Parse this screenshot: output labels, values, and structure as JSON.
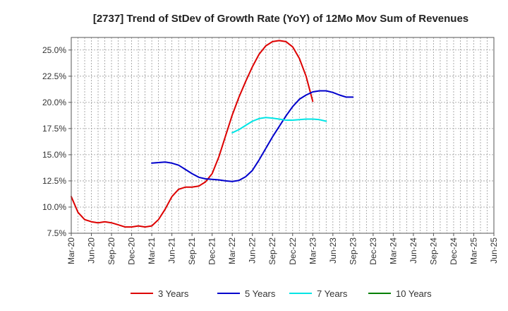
{
  "chart_data": {
    "type": "line",
    "title": "[2737]  Trend of StDev of Growth Rate (YoY) of 12Mo Mov Sum of Revenues",
    "xlabel": "",
    "ylabel": "",
    "x_ticks": [
      "Mar-20",
      "Jun-20",
      "Sep-20",
      "Dec-20",
      "Mar-21",
      "Jun-21",
      "Sep-21",
      "Dec-21",
      "Mar-22",
      "Jun-22",
      "Sep-22",
      "Dec-22",
      "Mar-23",
      "Jun-23",
      "Sep-23",
      "Dec-23",
      "Mar-24",
      "Jun-24",
      "Sep-24",
      "Dec-24",
      "Mar-25",
      "Jun-25"
    ],
    "y_ticks": [
      "7.5%",
      "10.0%",
      "12.5%",
      "15.0%",
      "17.5%",
      "20.0%",
      "22.5%",
      "25.0%"
    ],
    "y_tick_values": [
      7.5,
      10.0,
      12.5,
      15.0,
      17.5,
      20.0,
      22.5,
      25.0
    ],
    "ylim": [
      7.5,
      26.2
    ],
    "grid": true,
    "legend_position": "bottom",
    "series": [
      {
        "name": "3 Years",
        "color": "#dd0000",
        "start_index": 0,
        "values": [
          11.0,
          9.5,
          8.8,
          8.6,
          8.5,
          8.6,
          8.5,
          8.3,
          8.1,
          8.1,
          8.2,
          8.1,
          8.2,
          8.8,
          9.8,
          11.0,
          11.7,
          11.9,
          11.9,
          12.0,
          12.4,
          13.2,
          14.8,
          16.8,
          18.8,
          20.5,
          22.0,
          23.4,
          24.6,
          25.4,
          25.8,
          25.9,
          25.8,
          25.3,
          24.2,
          22.5,
          20.1
        ]
      },
      {
        "name": "5 Years",
        "color": "#0000cc",
        "start_index": 12,
        "values": [
          14.2,
          14.25,
          14.3,
          14.2,
          14.0,
          13.6,
          13.2,
          12.85,
          12.7,
          12.65,
          12.6,
          12.5,
          12.45,
          12.55,
          12.9,
          13.5,
          14.5,
          15.6,
          16.7,
          17.7,
          18.7,
          19.6,
          20.3,
          20.7,
          21.0,
          21.1,
          21.1,
          20.95,
          20.7,
          20.5,
          20.5
        ]
      },
      {
        "name": "7 Years",
        "color": "#00e5e5",
        "start_index": 24,
        "values": [
          17.1,
          17.4,
          17.8,
          18.2,
          18.45,
          18.55,
          18.5,
          18.4,
          18.3,
          18.3,
          18.35,
          18.4,
          18.4,
          18.35,
          18.2
        ]
      },
      {
        "name": "10 Years",
        "color": "#008000",
        "start_index": 0,
        "values": []
      }
    ]
  }
}
